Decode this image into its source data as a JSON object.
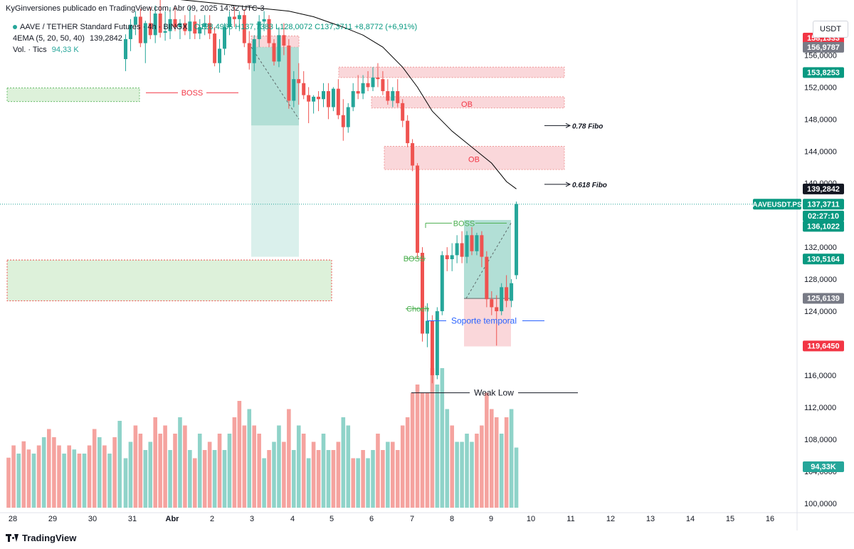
{
  "header": {
    "published": "KyGinversiones publicado en TradingView.com, Abr 09, 2025 14:32 UTC-3",
    "symbol": "AAVE / TETHER Standard Futures · 4h · BINGX",
    "ohlc": "O128,4966 H137,7383 L128,0072 C137,3711 +8,8772 (+6,91%)",
    "ema_label": "4EMA (5, 20, 50, 40)",
    "ema_value": "139,2842",
    "vol_label": "Vol. · Tics",
    "vol_value": "94,33 K"
  },
  "currency_button": "USDT",
  "logo_text": "TradingView",
  "colors": {
    "up": "#26a69a",
    "down": "#ef5350",
    "up_vol": "#8fd3c9",
    "down_vol": "#f5a39f",
    "ema": "#000000",
    "ob_fill": "#f9d0d3",
    "green_zone": "#d7efd4",
    "support_line": "#2962ff"
  },
  "chart_data": {
    "type": "candlestick",
    "y_axis": {
      "range": [
        99,
        162
      ],
      "ticks": [
        "100,0000",
        "104,0000",
        "108,0000",
        "112,0000",
        "116,0000",
        "120,0000",
        "124,0000",
        "128,0000",
        "132,0000",
        "136,0000",
        "140,0000",
        "144,0000",
        "148,0000",
        "152,0000",
        "156,0000"
      ]
    },
    "x_axis": {
      "ticks": [
        "28",
        "29",
        "30",
        "31",
        "Abr",
        "2",
        "3",
        "4",
        "5",
        "6",
        "7",
        "8",
        "9",
        "10",
        "11",
        "12",
        "13",
        "14",
        "15",
        "16"
      ]
    },
    "price_labels": [
      {
        "text": "158,1333",
        "value": 158.13,
        "color": "#f23645"
      },
      {
        "text": "156,9787",
        "value": 156.98,
        "color": "#787b86"
      },
      {
        "text": "153,8253",
        "value": 153.83,
        "color": "#089981"
      },
      {
        "text": "139,2842",
        "value": 139.28,
        "color": "#131722"
      },
      {
        "text": "137,3711",
        "value": 137.37,
        "color": "#089981"
      },
      {
        "text": "02:27:10",
        "value": 135.9,
        "color": "#089981"
      },
      {
        "text": "136,1022",
        "value": 134.6,
        "color": "#089981"
      },
      {
        "text": "130,5164",
        "value": 130.52,
        "color": "#089981"
      },
      {
        "text": "125,6139",
        "value": 125.61,
        "color": "#787b86"
      },
      {
        "text": "119,6450",
        "value": 119.65,
        "color": "#f23645"
      }
    ],
    "symbol_tag": "AAVEUSDT.PS",
    "volume_label": "94,33K",
    "candles": [
      [
        155.5,
        158.6,
        154.0,
        158.0
      ],
      [
        158.0,
        160.5,
        156.5,
        159.8
      ],
      [
        159.8,
        161.5,
        158.5,
        160.8
      ],
      [
        160.8,
        161.8,
        157.0,
        157.5
      ],
      [
        157.5,
        160.3,
        155.0,
        160.0
      ],
      [
        160.0,
        162.0,
        158.0,
        158.5
      ],
      [
        158.5,
        162.2,
        157.5,
        161.2
      ],
      [
        161.2,
        163.0,
        158.2,
        158.8
      ],
      [
        158.8,
        161.5,
        157.8,
        159.0
      ],
      [
        159.0,
        162.0,
        158.0,
        160.5
      ],
      [
        160.5,
        162.0,
        159.0,
        159.5
      ],
      [
        159.5,
        160.5,
        158.0,
        160.0
      ],
      [
        160.0,
        161.0,
        158.5,
        159.0
      ],
      [
        159.0,
        162.0,
        158.0,
        160.2
      ],
      [
        160.2,
        161.0,
        158.0,
        158.7
      ],
      [
        158.7,
        160.5,
        158.0,
        159.5
      ],
      [
        159.5,
        161.0,
        158.5,
        160.0
      ],
      [
        160.0,
        161.0,
        158.0,
        158.7
      ],
      [
        158.7,
        159.5,
        154.6,
        155.0
      ],
      [
        155.0,
        158.0,
        153.8,
        156.8
      ],
      [
        156.8,
        160.0,
        156.0,
        159.5
      ],
      [
        159.5,
        161.5,
        158.5,
        160.8
      ],
      [
        160.8,
        162.0,
        159.5,
        160.5
      ],
      [
        160.5,
        161.5,
        159.0,
        161.0
      ],
      [
        161.0,
        161.8,
        157.0,
        157.5
      ],
      [
        157.5,
        159.0,
        154.2,
        155.0
      ],
      [
        155.0,
        158.5,
        154.0,
        158.0
      ],
      [
        158.0,
        161.0,
        157.0,
        160.2
      ],
      [
        160.2,
        161.5,
        159.0,
        160.5
      ],
      [
        160.5,
        161.0,
        157.0,
        157.5
      ],
      [
        157.5,
        158.0,
        154.7,
        155.2
      ],
      [
        155.2,
        159.5,
        154.5,
        158.5
      ],
      [
        158.5,
        160.0,
        156.0,
        157.2
      ],
      [
        157.2,
        158.0,
        149.3,
        150.3
      ],
      [
        150.3,
        154.0,
        149.5,
        153.0
      ],
      [
        153.0,
        155.0,
        149.8,
        152.5
      ],
      [
        152.5,
        154.0,
        150.5,
        151.0
      ],
      [
        151.0,
        152.0,
        147.5,
        150.2
      ],
      [
        150.2,
        151.0,
        148.7,
        150.8
      ],
      [
        150.8,
        151.5,
        149.0,
        150.5
      ],
      [
        150.5,
        152.5,
        149.5,
        151.5
      ],
      [
        151.5,
        152.5,
        148.0,
        149.5
      ],
      [
        149.5,
        152.0,
        149.0,
        151.8
      ],
      [
        151.8,
        153.0,
        148.0,
        148.5
      ],
      [
        148.5,
        150.5,
        145.3,
        147.0
      ],
      [
        147.0,
        150.0,
        146.3,
        149.5
      ],
      [
        149.5,
        152.5,
        149.0,
        151.5
      ],
      [
        151.5,
        153.5,
        150.5,
        151.2
      ],
      [
        151.2,
        153.5,
        150.5,
        152.5
      ],
      [
        152.5,
        154.0,
        151.5,
        152.0
      ],
      [
        152.0,
        154.5,
        151.5,
        153.2
      ],
      [
        153.2,
        155.0,
        152.0,
        153.0
      ],
      [
        153.0,
        154.0,
        151.0,
        151.5
      ],
      [
        151.5,
        153.0,
        149.8,
        150.3
      ],
      [
        150.3,
        152.0,
        149.5,
        151.5
      ],
      [
        151.5,
        153.0,
        149.5,
        150.0
      ],
      [
        150.0,
        150.5,
        147.0,
        147.8
      ],
      [
        147.8,
        148.5,
        144.5,
        145.0
      ],
      [
        145.0,
        145.5,
        141.5,
        142.2
      ],
      [
        142.2,
        142.5,
        130.5,
        131.3
      ],
      [
        131.3,
        132.0,
        120.2,
        121.2
      ],
      [
        121.2,
        125.0,
        119.5,
        122.8
      ],
      [
        122.8,
        123.5,
        115.0,
        116.0
      ],
      [
        116.0,
        124.5,
        115.5,
        124.0
      ],
      [
        124.0,
        131.5,
        123.5,
        131.0
      ],
      [
        131.0,
        132.0,
        129.0,
        130.5
      ],
      [
        130.5,
        132.5,
        129.0,
        131.0
      ],
      [
        131.0,
        133.5,
        130.0,
        132.5
      ],
      [
        132.5,
        134.0,
        130.0,
        130.8
      ],
      [
        130.8,
        134.0,
        130.0,
        133.5
      ],
      [
        133.5,
        134.5,
        131.0,
        131.5
      ],
      [
        131.5,
        133.8,
        131.0,
        133.5
      ],
      [
        133.5,
        134.0,
        129.5,
        130.8
      ],
      [
        130.8,
        131.5,
        124.5,
        125.5
      ],
      [
        125.5,
        126.5,
        123.5,
        124.5
      ],
      [
        124.5,
        126.0,
        119.7,
        124.0
      ],
      [
        124.0,
        127.5,
        123.5,
        127.0
      ],
      [
        127.0,
        128.5,
        124.5,
        125.3
      ],
      [
        125.3,
        128.0,
        124.5,
        127.5
      ],
      [
        128.5,
        137.7,
        128.0,
        137.4
      ]
    ],
    "volumes": [
      [
        1,
        103
      ],
      [
        1,
        105
      ],
      [
        0,
        107
      ],
      [
        0,
        106
      ],
      [
        1,
        104
      ],
      [
        1,
        105
      ],
      [
        0,
        108
      ],
      [
        0,
        106
      ],
      [
        0,
        107
      ],
      [
        1,
        104
      ],
      [
        0,
        106
      ],
      [
        1,
        108
      ],
      [
        0,
        107
      ],
      [
        1,
        104
      ],
      [
        0,
        103
      ],
      [
        1,
        106
      ],
      [
        0,
        104
      ],
      [
        0,
        105
      ],
      [
        1,
        104
      ],
      [
        0,
        106
      ],
      [
        1,
        104
      ],
      [
        1,
        106
      ],
      [
        0,
        108
      ],
      [
        0,
        110
      ],
      [
        0,
        107
      ],
      [
        1,
        109
      ],
      [
        0,
        107
      ],
      [
        0,
        106
      ],
      [
        1,
        103
      ],
      [
        0,
        104
      ],
      [
        1,
        105
      ],
      [
        1,
        107
      ],
      [
        0,
        105
      ],
      [
        0,
        109
      ],
      [
        1,
        104
      ],
      [
        1,
        107
      ],
      [
        0,
        106
      ],
      [
        1,
        103
      ],
      [
        0,
        105
      ],
      [
        0,
        104
      ],
      [
        1,
        106
      ],
      [
        1,
        104
      ],
      [
        0,
        104
      ],
      [
        0,
        105
      ],
      [
        1,
        108
      ],
      [
        1,
        107
      ],
      [
        0,
        103
      ],
      [
        1,
        103
      ],
      [
        0,
        104
      ],
      [
        1,
        103
      ],
      [
        1,
        104
      ],
      [
        0,
        106
      ],
      [
        0,
        104
      ],
      [
        1,
        105
      ],
      [
        0,
        105
      ],
      [
        0,
        104
      ],
      [
        0,
        107
      ],
      [
        0,
        108
      ],
      [
        0,
        111
      ],
      [
        0,
        112
      ],
      [
        0,
        111
      ],
      [
        0,
        111
      ],
      [
        0,
        114
      ],
      [
        1,
        112
      ],
      [
        1,
        114
      ],
      [
        1,
        109
      ],
      [
        0,
        107
      ],
      [
        1,
        105
      ],
      [
        1,
        105
      ],
      [
        1,
        106
      ],
      [
        1,
        105
      ],
      [
        0,
        106
      ],
      [
        0,
        107
      ],
      [
        0,
        111
      ],
      [
        0,
        109
      ],
      [
        0,
        108
      ],
      [
        1,
        106
      ],
      [
        0,
        108
      ],
      [
        1,
        109
      ],
      [
        1,
        104.3
      ]
    ],
    "ema_points": [
      [
        5,
        163.8
      ],
      [
        10,
        163.0
      ],
      [
        18,
        162.5
      ],
      [
        25,
        162.0
      ],
      [
        33,
        161.5
      ],
      [
        38,
        160.8
      ],
      [
        44,
        159.5
      ],
      [
        48,
        158.5
      ],
      [
        52,
        157.0
      ],
      [
        56,
        154.5
      ],
      [
        59,
        152.0
      ],
      [
        62,
        149.0
      ],
      [
        66,
        146.5
      ],
      [
        70,
        144.5
      ],
      [
        74,
        142.5
      ],
      [
        77,
        140.2
      ],
      [
        79,
        139.28
      ]
    ],
    "annotations": [
      {
        "text": "BOSS",
        "color": "#f23645"
      },
      {
        "text": "OB",
        "color": "#f23645"
      },
      {
        "text": "OB",
        "color": "#f23645"
      },
      {
        "text": "0.78 Fibo",
        "color": "#131722"
      },
      {
        "text": "0.618 Fibo",
        "color": "#131722"
      },
      {
        "text": "BOSS",
        "color": "#4caf50"
      },
      {
        "text": "BOSS",
        "color": "#4caf50"
      },
      {
        "text": "Choch",
        "color": "#4caf50"
      },
      {
        "text": "Soporte temporal",
        "color": "#2962ff"
      },
      {
        "text": "Weak Low",
        "color": "#131722"
      }
    ]
  }
}
